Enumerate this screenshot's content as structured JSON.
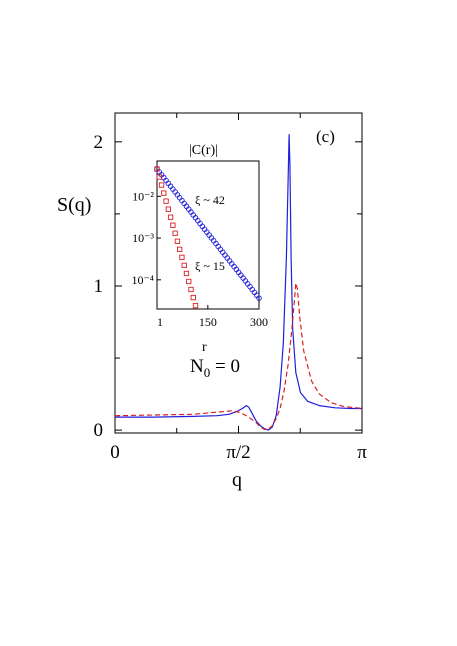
{
  "chart_data": [
    {
      "type": "line",
      "panel_label": "(c)",
      "xlabel": "q",
      "ylabel": "S(q)",
      "annotation": "N_0 = 0",
      "xlim": [
        0,
        3.14159
      ],
      "ylim": [
        -0.02,
        2.2
      ],
      "x_ticks": [
        {
          "value": 0,
          "label": "0"
        },
        {
          "value": 1.5708,
          "label": "π/2"
        },
        {
          "value": 3.14159,
          "label": "π"
        }
      ],
      "y_ticks": [
        {
          "value": 0,
          "label": "0"
        },
        {
          "value": 1,
          "label": "1"
        },
        {
          "value": 2,
          "label": "2"
        }
      ],
      "grid": false,
      "series": [
        {
          "color": "#1f1fdd",
          "style": "solid",
          "points": [
            [
              0.0,
              0.09
            ],
            [
              0.5,
              0.09
            ],
            [
              1.0,
              0.095
            ],
            [
              1.3,
              0.1
            ],
            [
              1.45,
              0.11
            ],
            [
              1.55,
              0.13
            ],
            [
              1.62,
              0.15
            ],
            [
              1.67,
              0.17
            ],
            [
              1.7,
              0.16
            ],
            [
              1.75,
              0.11
            ],
            [
              1.8,
              0.06
            ],
            [
              1.85,
              0.03
            ],
            [
              1.9,
              0.01
            ],
            [
              1.95,
              0.0
            ],
            [
              2.0,
              0.02
            ],
            [
              2.05,
              0.1
            ],
            [
              2.1,
              0.3
            ],
            [
              2.14,
              0.6
            ],
            [
              2.18,
              1.2
            ],
            [
              2.2,
              1.7
            ],
            [
              2.215,
              2.05
            ],
            [
              2.225,
              1.85
            ],
            [
              2.24,
              1.2
            ],
            [
              2.26,
              0.7
            ],
            [
              2.3,
              0.4
            ],
            [
              2.36,
              0.26
            ],
            [
              2.45,
              0.2
            ],
            [
              2.6,
              0.17
            ],
            [
              2.8,
              0.155
            ],
            [
              3.0,
              0.15
            ],
            [
              3.14159,
              0.15
            ]
          ]
        },
        {
          "color": "#dd1f1f",
          "style": "dashed",
          "points": [
            [
              0.0,
              0.1
            ],
            [
              0.5,
              0.105
            ],
            [
              1.0,
              0.11
            ],
            [
              1.3,
              0.125
            ],
            [
              1.5,
              0.135
            ],
            [
              1.6,
              0.12
            ],
            [
              1.7,
              0.09
            ],
            [
              1.8,
              0.05
            ],
            [
              1.85,
              0.02
            ],
            [
              1.9,
              0.005
            ],
            [
              1.95,
              0.005
            ],
            [
              2.0,
              0.03
            ],
            [
              2.05,
              0.08
            ],
            [
              2.1,
              0.15
            ],
            [
              2.15,
              0.27
            ],
            [
              2.2,
              0.45
            ],
            [
              2.25,
              0.7
            ],
            [
              2.285,
              0.92
            ],
            [
              2.3,
              1.02
            ],
            [
              2.32,
              0.98
            ],
            [
              2.35,
              0.78
            ],
            [
              2.4,
              0.55
            ],
            [
              2.5,
              0.34
            ],
            [
              2.6,
              0.25
            ],
            [
              2.75,
              0.19
            ],
            [
              2.9,
              0.165
            ],
            [
              3.14159,
              0.15
            ]
          ]
        }
      ]
    },
    {
      "type": "scatter",
      "title": "|C(r)|",
      "xlabel": "r",
      "x_tick_labels": [
        "1",
        "150",
        "300"
      ],
      "y_tick_labels": [
        "10⁻²",
        "10⁻³",
        "10⁻⁴"
      ],
      "x_ticks": [
        1,
        150,
        300
      ],
      "y_ticks": [
        0.01,
        0.001,
        0.0001
      ],
      "xlim": [
        1,
        300
      ],
      "ylim": [
        2e-05,
        0.07
      ],
      "ylog": true,
      "series": [
        {
          "label": "ξ ~ 42",
          "color": "#1f1fdd",
          "marker": "circle",
          "xi": 42,
          "amplitude": 0.045
        },
        {
          "label": "ξ ~ 15",
          "color": "#dd1f1f",
          "marker": "square",
          "xi": 15,
          "amplitude": 0.045
        }
      ]
    }
  ]
}
